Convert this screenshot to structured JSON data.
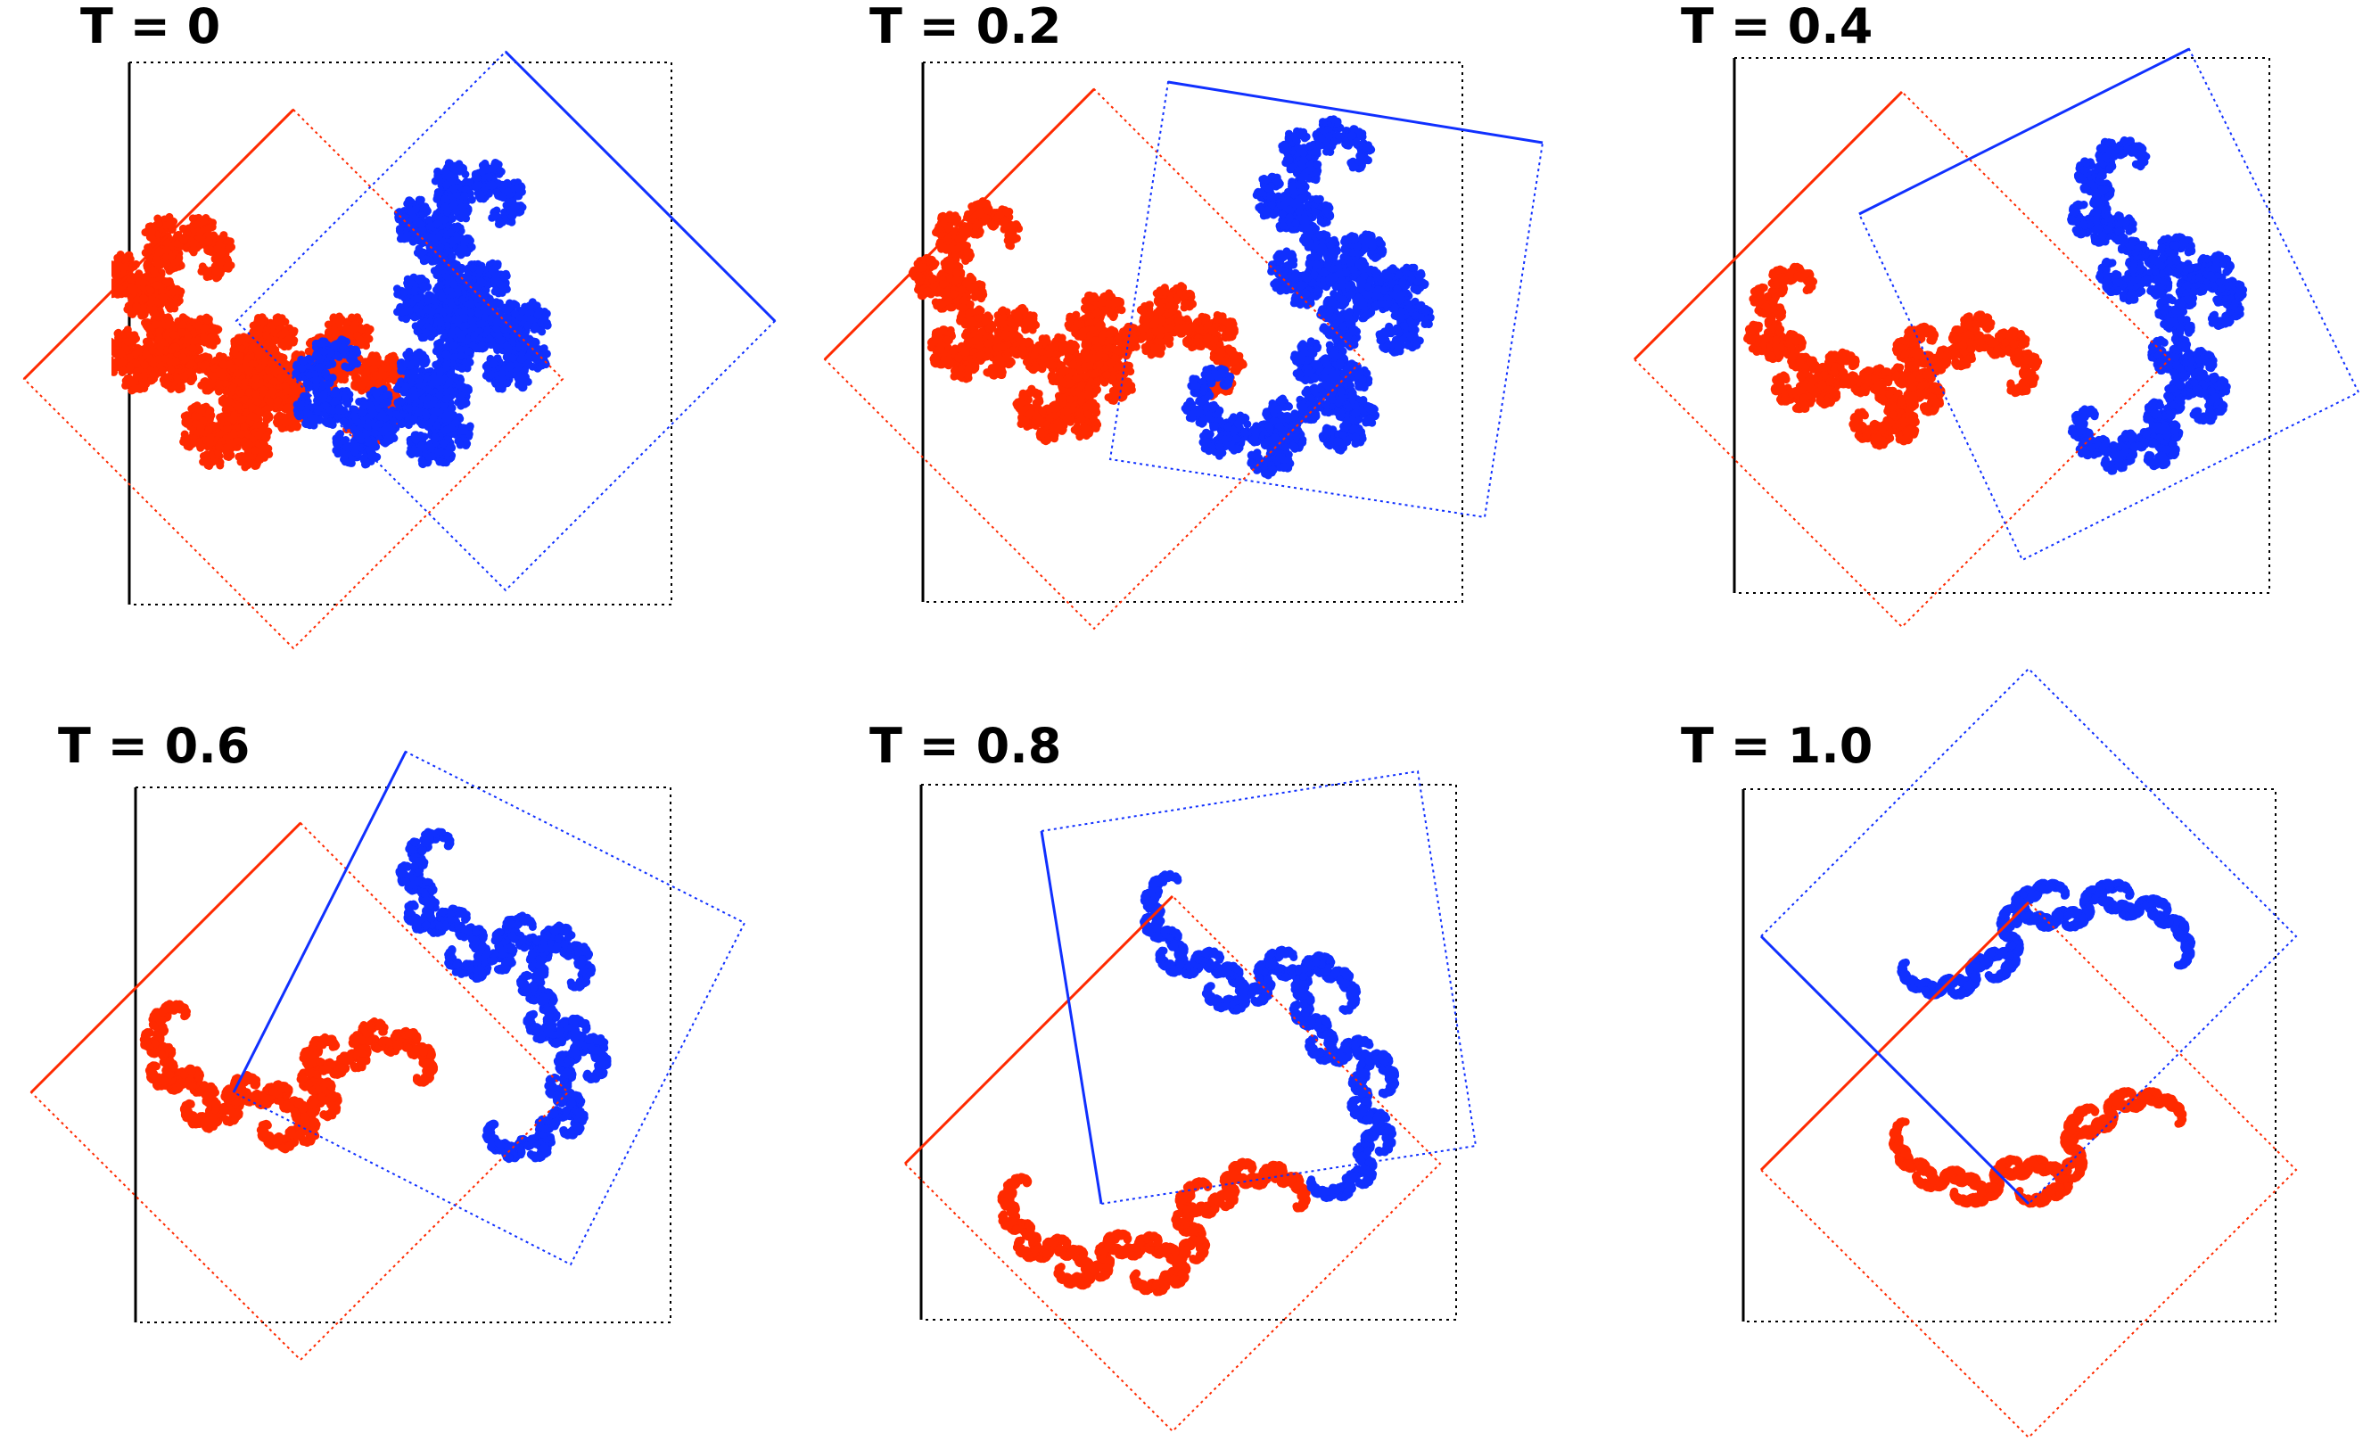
{
  "colors": {
    "background": "#ffffff",
    "frame": "#000000",
    "red": "#ff2a00",
    "blue": "#1030ff"
  },
  "panels": [
    {
      "title": "T = 0",
      "t": 0
    },
    {
      "title": "T = 0.2",
      "t": 0.2
    },
    {
      "title": "T = 0.4",
      "t": 0.4
    },
    {
      "title": "T = 0.6",
      "t": 0.6
    },
    {
      "title": "T = 0.8",
      "t": 0.8
    },
    {
      "title": "T = 1.0",
      "t": 1.0
    }
  ]
}
